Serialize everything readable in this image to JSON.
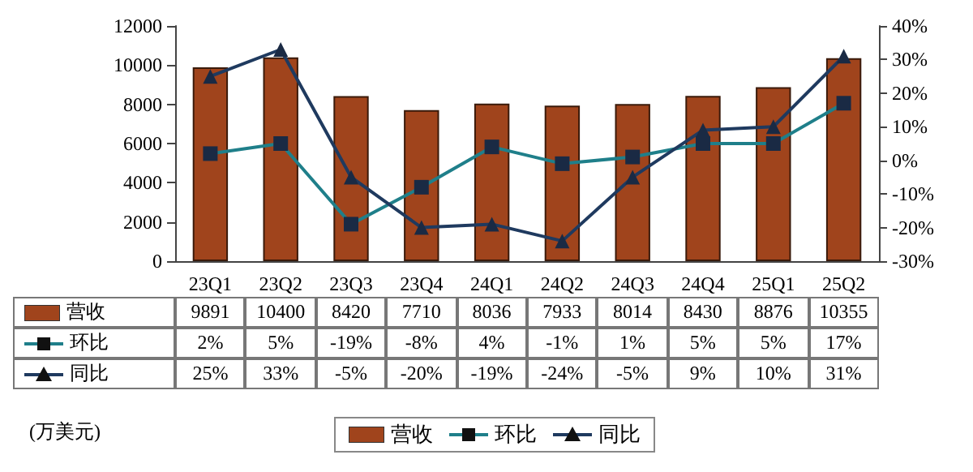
{
  "chart_data": {
    "type": "bar",
    "categories": [
      "23Q1",
      "23Q2",
      "23Q3",
      "23Q4",
      "24Q1",
      "24Q2",
      "24Q3",
      "24Q4",
      "25Q1",
      "25Q2"
    ],
    "ylim": [
      0,
      12000
    ],
    "yticks": [
      0,
      2000,
      4000,
      6000,
      8000,
      10000,
      12000
    ],
    "y2lim": [
      -30,
      40
    ],
    "y2ticks": [
      {
        "value": -30,
        "label": "-30%"
      },
      {
        "value": -20,
        "label": "-20%"
      },
      {
        "value": -10,
        "label": "-10%"
      },
      {
        "value": 0,
        "label": "0%"
      },
      {
        "value": 10,
        "label": "10%"
      },
      {
        "value": 20,
        "label": "20%"
      },
      {
        "value": 30,
        "label": "30%"
      },
      {
        "value": 40,
        "label": "40%"
      }
    ],
    "legend": "bottom",
    "annotations": [
      "(万美元)"
    ],
    "series": [
      {
        "name": "营收",
        "color": "#a0441c",
        "values": [
          9891,
          10400,
          8420,
          7710,
          8036,
          7933,
          8014,
          8430,
          8876,
          10355
        ],
        "value_labels": [
          "9891",
          "10400",
          "8420",
          "7710",
          "8036",
          "7933",
          "8014",
          "8430",
          "8876",
          "10355"
        ]
      },
      {
        "name": "环比",
        "type": "line",
        "axis": "y2",
        "marker": "square",
        "color": "#1f7f8a",
        "values": [
          2,
          5,
          -19,
          -8,
          4,
          -1,
          1,
          5,
          5,
          17
        ],
        "value_labels": [
          "2%",
          "5%",
          "-19%",
          "-8%",
          "4%",
          "-1%",
          "1%",
          "5%",
          "5%",
          "17%"
        ]
      },
      {
        "name": "同比",
        "type": "line",
        "axis": "y2",
        "marker": "triangle",
        "color": "#1f3a5f",
        "values": [
          25,
          33,
          -5,
          -20,
          -19,
          -24,
          -5,
          9,
          10,
          31
        ],
        "value_labels": [
          "25%",
          "33%",
          "-5%",
          "-20%",
          "-19%",
          "-24%",
          "-5%",
          "9%",
          "10%",
          "31%"
        ]
      }
    ]
  }
}
